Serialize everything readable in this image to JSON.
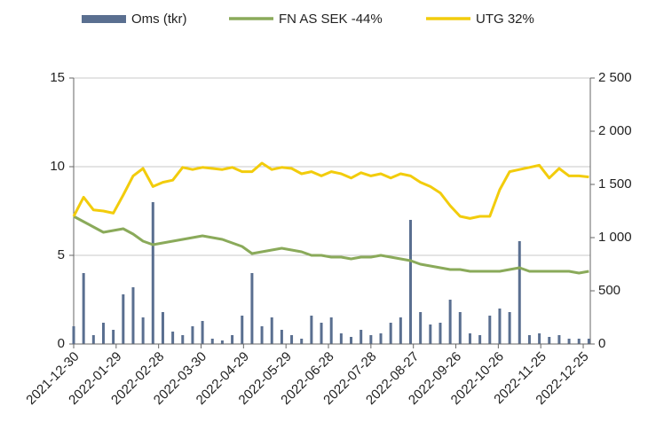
{
  "chart_data": {
    "type": "combo",
    "x": [
      "2021-12-30",
      "2022-01-06",
      "2022-01-13",
      "2022-01-20",
      "2022-01-27",
      "2022-02-03",
      "2022-02-10",
      "2022-02-17",
      "2022-02-24",
      "2022-03-03",
      "2022-03-10",
      "2022-03-17",
      "2022-03-24",
      "2022-03-31",
      "2022-04-07",
      "2022-04-14",
      "2022-04-21",
      "2022-04-28",
      "2022-05-05",
      "2022-05-12",
      "2022-05-19",
      "2022-05-26",
      "2022-06-02",
      "2022-06-09",
      "2022-06-16",
      "2022-06-23",
      "2022-06-30",
      "2022-07-07",
      "2022-07-14",
      "2022-07-21",
      "2022-07-28",
      "2022-08-04",
      "2022-08-11",
      "2022-08-18",
      "2022-08-25",
      "2022-09-01",
      "2022-09-08",
      "2022-09-15",
      "2022-09-22",
      "2022-09-29",
      "2022-10-06",
      "2022-10-13",
      "2022-10-20",
      "2022-10-27",
      "2022-11-03",
      "2022-11-10",
      "2022-11-17",
      "2022-11-24",
      "2022-12-01",
      "2022-12-08",
      "2022-12-15",
      "2022-12-22",
      "2022-12-29"
    ],
    "series": [
      {
        "name": "Oms (tkr)",
        "kind": "bar",
        "color": "#5a6f90",
        "axis": "y",
        "values": [
          1.0,
          4.0,
          0.5,
          1.2,
          0.8,
          2.8,
          3.2,
          1.5,
          8.0,
          1.8,
          0.7,
          0.5,
          1.0,
          1.3,
          0.3,
          0.2,
          0.5,
          1.6,
          4.0,
          1.0,
          1.5,
          0.8,
          0.5,
          0.3,
          1.6,
          1.2,
          1.5,
          0.6,
          0.4,
          0.8,
          0.5,
          0.6,
          1.2,
          1.5,
          7.0,
          1.8,
          1.1,
          1.2,
          2.5,
          1.8,
          0.6,
          0.5,
          1.6,
          2.0,
          1.8,
          5.8,
          0.5,
          0.6,
          0.4,
          0.5,
          0.3,
          0.3,
          0.3
        ]
      },
      {
        "name": "FN AS SEK -44%",
        "kind": "line",
        "color": "#8aaa5a",
        "axis": "y",
        "values": [
          7.2,
          6.9,
          6.6,
          6.3,
          6.4,
          6.5,
          6.2,
          5.8,
          5.6,
          5.7,
          5.8,
          5.9,
          6.0,
          6.1,
          6.0,
          5.9,
          5.7,
          5.5,
          5.1,
          5.2,
          5.3,
          5.4,
          5.3,
          5.2,
          5.0,
          5.0,
          4.9,
          4.9,
          4.8,
          4.9,
          4.9,
          5.0,
          4.9,
          4.8,
          4.7,
          4.5,
          4.4,
          4.3,
          4.2,
          4.2,
          4.1,
          4.1,
          4.1,
          4.1,
          4.2,
          4.3,
          4.1,
          4.1,
          4.1,
          4.1,
          4.1,
          4.0,
          4.1
        ]
      },
      {
        "name": "UTG 32%",
        "kind": "line",
        "color": "#f2cc0c",
        "axis": "y2",
        "values": [
          1200,
          1380,
          1260,
          1250,
          1230,
          1400,
          1580,
          1650,
          1480,
          1520,
          1540,
          1660,
          1640,
          1660,
          1650,
          1640,
          1660,
          1620,
          1620,
          1700,
          1640,
          1660,
          1650,
          1600,
          1620,
          1580,
          1620,
          1600,
          1560,
          1610,
          1580,
          1600,
          1560,
          1600,
          1580,
          1520,
          1480,
          1420,
          1300,
          1200,
          1180,
          1200,
          1200,
          1450,
          1620,
          1640,
          1660,
          1680,
          1560,
          1650,
          1580,
          1580,
          1570
        ]
      }
    ],
    "xlim": [
      "2021-12-30",
      "2022-12-30"
    ],
    "xticks": [
      "2021-12-30",
      "2022-01-29",
      "2022-02-28",
      "2022-03-30",
      "2022-04-29",
      "2022-05-29",
      "2022-06-28",
      "2022-07-28",
      "2022-08-27",
      "2022-09-26",
      "2022-10-26",
      "2022-11-25",
      "2022-12-25"
    ],
    "ylim": [
      0,
      15
    ],
    "yticks": [
      0,
      5,
      10,
      15
    ],
    "y2lim": [
      0,
      2500
    ],
    "y2ticks": [
      0,
      500,
      {
        "value": 1000,
        "label": "1 000"
      },
      {
        "value": 1500,
        "label": "1 500"
      },
      {
        "value": 2000,
        "label": "2 000"
      },
      {
        "value": 2500,
        "label": "2 500"
      }
    ],
    "grid": true,
    "legend": "top"
  }
}
